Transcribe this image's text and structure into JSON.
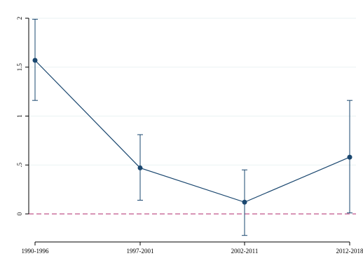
{
  "chart_data": {
    "type": "line",
    "title": "",
    "xlabel": "",
    "ylabel": "",
    "categories": [
      "1990-1996",
      "1997-2001",
      "2002-2011",
      "2012-2018"
    ],
    "series": [
      {
        "values": [
          1.57,
          0.47,
          0.12,
          0.58
        ],
        "ci_lower": [
          1.16,
          0.14,
          -0.22,
          0.01
        ],
        "ci_upper": [
          1.99,
          0.81,
          0.45,
          1.16
        ]
      }
    ],
    "ylim": [
      -0.25,
      2.05
    ],
    "y_ticks": [
      0,
      0.5,
      1,
      1.5,
      2
    ],
    "y_tick_labels": [
      "0",
      ".5",
      "1",
      "1.5",
      "2"
    ],
    "reference_line": {
      "y": 0,
      "style": "dashed"
    },
    "grid": true,
    "legend": "none",
    "colors": {
      "series": "#1a476f",
      "reference_line": "#c1558a",
      "grid": "#eaf2f3",
      "axis": "#000000"
    }
  }
}
